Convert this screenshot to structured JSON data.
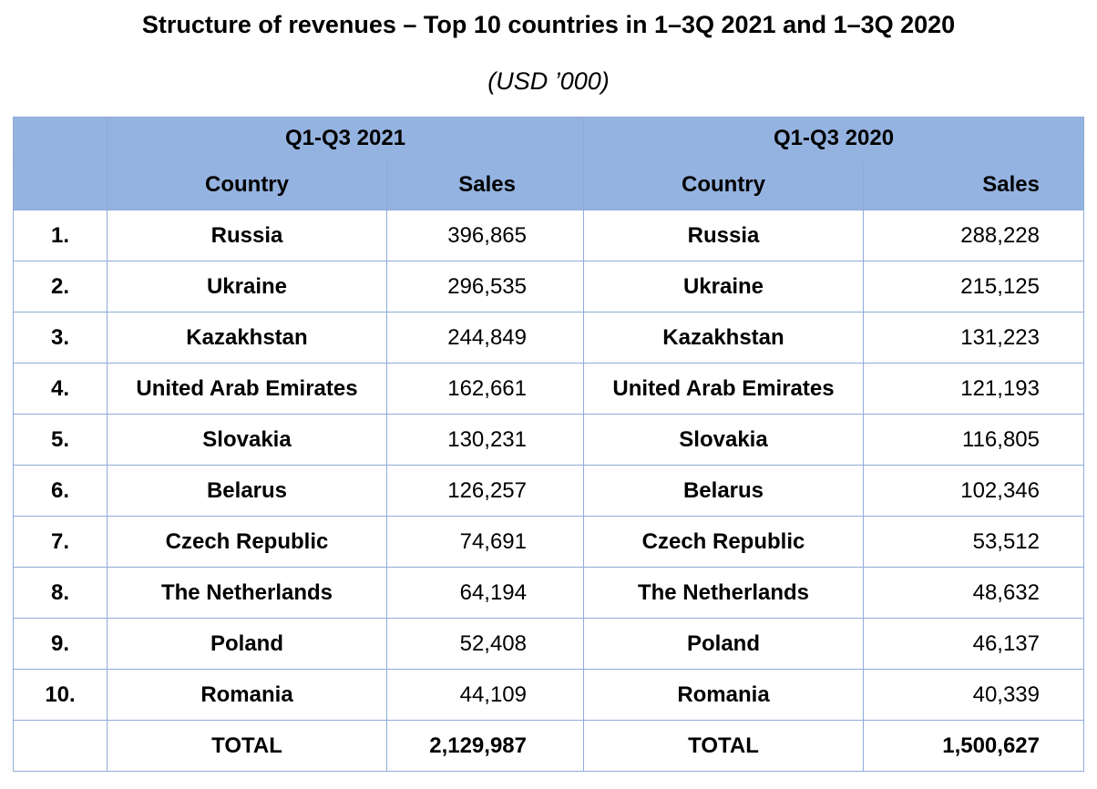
{
  "title": "Structure of revenues – Top 10 countries in 1–3Q 2021 and 1–3Q 2020",
  "subtitle": "(USD ’000)",
  "chart_data": {
    "type": "table",
    "periods": [
      "Q1-Q3 2021",
      "Q1-Q3 2020"
    ],
    "columns": {
      "country": "Country",
      "sales": "Sales"
    },
    "rows": [
      {
        "rank": "1.",
        "c2021": "Russia",
        "s2021": "396,865",
        "c2020": "Russia",
        "s2020": "288,228"
      },
      {
        "rank": "2.",
        "c2021": "Ukraine",
        "s2021": "296,535",
        "c2020": "Ukraine",
        "s2020": "215,125"
      },
      {
        "rank": "3.",
        "c2021": "Kazakhstan",
        "s2021": "244,849",
        "c2020": "Kazakhstan",
        "s2020": "131,223"
      },
      {
        "rank": "4.",
        "c2021": "United Arab Emirates",
        "s2021": "162,661",
        "c2020": "United Arab Emirates",
        "s2020": "121,193"
      },
      {
        "rank": "5.",
        "c2021": "Slovakia",
        "s2021": "130,231",
        "c2020": "Slovakia",
        "s2020": "116,805"
      },
      {
        "rank": "6.",
        "c2021": "Belarus",
        "s2021": "126,257",
        "c2020": "Belarus",
        "s2020": "102,346"
      },
      {
        "rank": "7.",
        "c2021": "Czech Republic",
        "s2021": "74,691",
        "c2020": "Czech Republic",
        "s2020": "53,512"
      },
      {
        "rank": "8.",
        "c2021": "The Netherlands",
        "s2021": "64,194",
        "c2020": "The Netherlands",
        "s2020": "48,632"
      },
      {
        "rank": "9.",
        "c2021": "Poland",
        "s2021": "52,408",
        "c2020": "Poland",
        "s2020": "46,137"
      },
      {
        "rank": "10.",
        "c2021": "Romania",
        "s2021": "44,109",
        "c2020": "Romania",
        "s2020": "40,339"
      }
    ],
    "total": {
      "label": "TOTAL",
      "s2021": "2,129,987",
      "s2020": "1,500,627"
    }
  }
}
